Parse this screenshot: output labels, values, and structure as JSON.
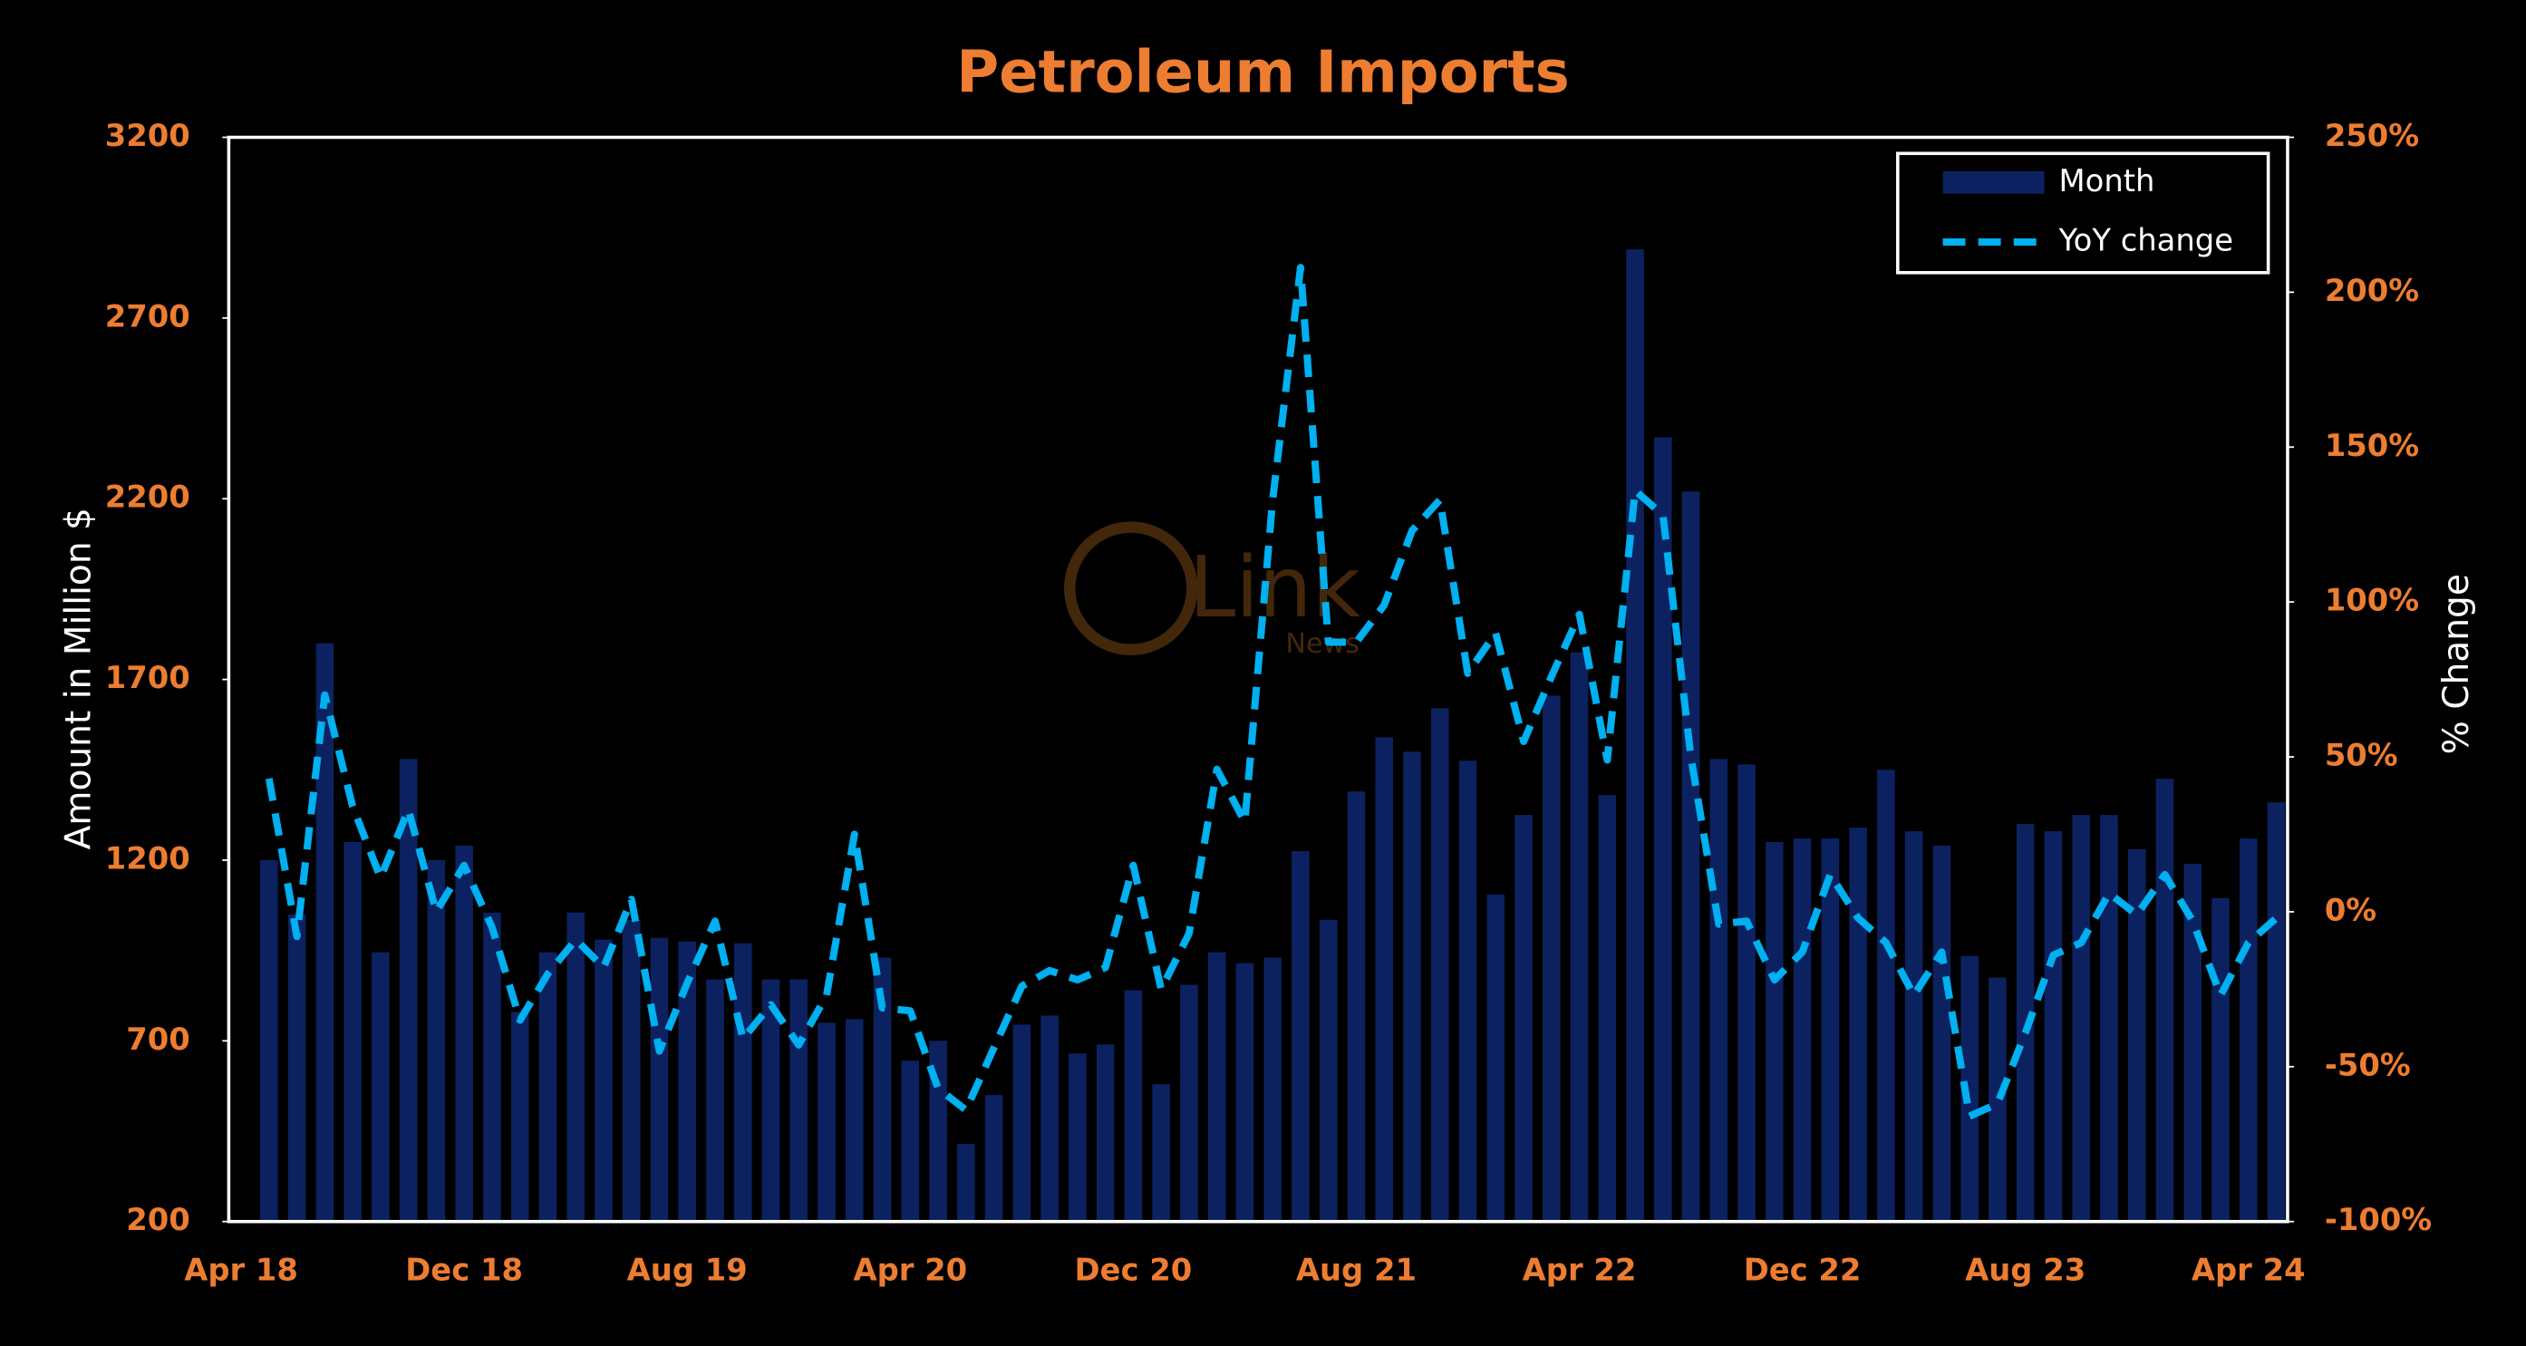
{
  "chart_data": {
    "type": "bar",
    "title": "Petroleum Imports",
    "y_label": "Amount in Million $",
    "y2_label": "% Change",
    "watermark": [
      "Link",
      "News"
    ],
    "categories": [
      "Apr 18",
      null,
      null,
      null,
      null,
      null,
      null,
      null,
      "Dec 18",
      null,
      null,
      null,
      null,
      null,
      null,
      null,
      "Aug 19",
      null,
      null,
      null,
      null,
      null,
      null,
      null,
      "Apr 20",
      null,
      null,
      null,
      null,
      null,
      null,
      null,
      "Dec 20",
      null,
      null,
      null,
      null,
      null,
      null,
      null,
      "Aug 21",
      null,
      null,
      null,
      null,
      null,
      null,
      null,
      "Apr 22",
      null,
      null,
      null,
      null,
      null,
      null,
      null,
      "Dec 22",
      null,
      null,
      null,
      null,
      null,
      null,
      null,
      "Aug 23",
      null,
      null,
      null,
      null,
      null,
      null,
      null,
      "Apr 24"
    ],
    "series": [
      {
        "name": "Month",
        "type": "bar",
        "color": "#0c2260",
        "values": [
          1200,
          1050,
          1800,
          1250,
          945,
          1480,
          1200,
          1240,
          1055,
          780,
          945,
          1055,
          980,
          1035,
          985,
          975,
          870,
          970,
          870,
          870,
          750,
          760,
          930,
          645,
          700,
          415,
          550,
          745,
          770,
          665,
          690,
          840,
          580,
          855,
          945,
          915,
          930,
          1225,
          1035,
          1390,
          1540,
          1500,
          1620,
          1475,
          1105,
          1325,
          1655,
          1775,
          1380,
          2890,
          2370,
          2220,
          1480,
          1465,
          1250,
          1260,
          1260,
          1290,
          1450,
          1280,
          1240,
          935,
          875,
          1300,
          1280,
          1325,
          1325,
          1230,
          1425,
          1190,
          1095,
          1260,
          1360
        ]
      },
      {
        "name": "YoY change",
        "type": "line",
        "axis": "y2",
        "color": "#00b0f0",
        "dashed": true,
        "values": [
          43,
          -8,
          70,
          34,
          11,
          33,
          0,
          15,
          -5,
          -35,
          -20,
          -9,
          -18,
          4,
          -45,
          -23,
          -3,
          -41,
          -30,
          -43,
          -27,
          25,
          -31,
          -32,
          -57,
          -64,
          -44,
          -24,
          -19,
          -22,
          -18,
          15,
          -25,
          -7,
          46,
          29,
          133,
          208,
          87,
          87,
          99,
          123,
          133,
          77,
          90,
          55,
          76,
          96,
          49,
          136,
          128,
          50,
          -4,
          -3,
          -22,
          -13,
          12,
          -2,
          -10,
          -27,
          -13,
          -66,
          -62,
          -39,
          -14,
          -10,
          6,
          -1,
          12,
          -3,
          -27,
          -10,
          -2
        ]
      }
    ],
    "ylim": [
      200,
      3200
    ],
    "yticks": [
      200,
      700,
      1200,
      1700,
      2200,
      2700,
      3200
    ],
    "y2lim": [
      -100,
      250
    ],
    "y2ticks": [
      {
        "value": -100,
        "label": "-100%"
      },
      {
        "value": -50,
        "label": "-50%"
      },
      {
        "value": 0,
        "label": "0%"
      },
      {
        "value": 50,
        "label": "50%"
      },
      {
        "value": 100,
        "label": "100%"
      },
      {
        "value": 150,
        "label": "150%"
      },
      {
        "value": 200,
        "label": "200%"
      },
      {
        "value": 250,
        "label": "250%"
      }
    ],
    "legend": "top-right"
  }
}
